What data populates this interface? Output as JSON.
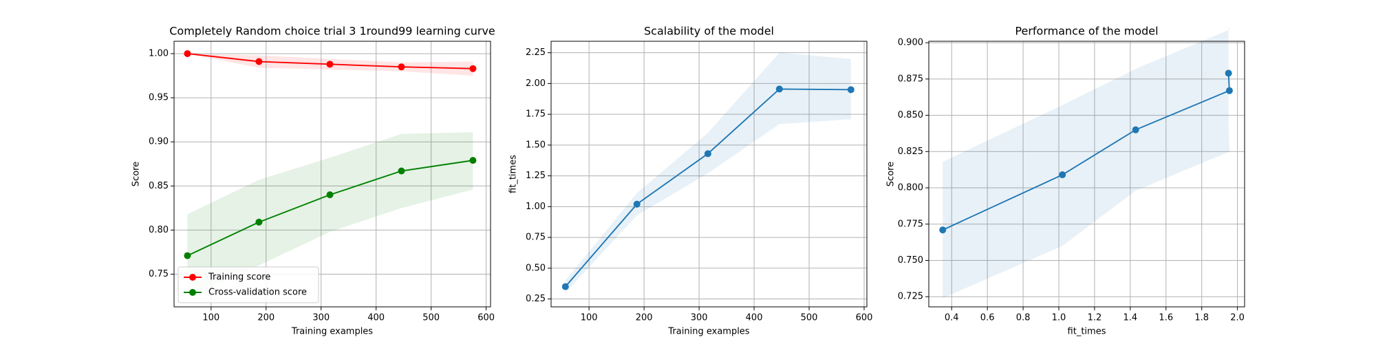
{
  "chart_data": [
    {
      "type": "line",
      "title": "Completely Random choice trial 3 1round99 learning curve",
      "xlabel": "Training examples",
      "ylabel": "Score",
      "x": [
        57,
        187,
        316,
        446,
        576
      ],
      "series": [
        {
          "name": "Training score",
          "color": "#ff0000",
          "values": [
            1.0,
            0.991,
            0.988,
            0.985,
            0.983
          ],
          "band_low": [
            1.0,
            0.984,
            0.982,
            0.98,
            0.975
          ],
          "band_high": [
            1.0,
            0.998,
            0.994,
            0.99,
            0.991
          ]
        },
        {
          "name": "Cross-validation score",
          "color": "#008000",
          "values": [
            0.771,
            0.809,
            0.84,
            0.867,
            0.879
          ],
          "band_low": [
            0.724,
            0.76,
            0.798,
            0.825,
            0.846
          ],
          "band_high": [
            0.818,
            0.857,
            0.882,
            0.909,
            0.911
          ]
        }
      ],
      "xlim": [
        32.7,
        608
      ],
      "ylim": [
        0.713,
        1.014
      ],
      "xticks": [
        100,
        200,
        300,
        400,
        500,
        600
      ],
      "yticks": [
        0.75,
        {
          "value": 0.8,
          "label": "0.80"
        },
        0.85,
        {
          "value": 0.9,
          "label": "0.90"
        },
        0.95,
        {
          "value": 1.0,
          "label": "1.00"
        }
      ],
      "grid": true,
      "legend": "lower left"
    },
    {
      "type": "line",
      "title": "Scalability of the model",
      "xlabel": "Training examples",
      "ylabel": "fit_times",
      "x": [
        57,
        187,
        316,
        446,
        576
      ],
      "series": [
        {
          "color": "#1f77b4",
          "values": [
            0.35,
            1.02,
            1.43,
            1.955,
            1.95
          ],
          "band_low": [
            0.3,
            0.93,
            1.27,
            1.67,
            1.71
          ],
          "band_high": [
            0.4,
            1.11,
            1.6,
            2.25,
            2.2
          ]
        }
      ],
      "xlim": [
        31,
        605
      ],
      "ylim": [
        0.186,
        2.343
      ],
      "xticks": [
        100,
        200,
        300,
        400,
        500,
        600
      ],
      "yticks": [
        0.25,
        {
          "value": 0.5,
          "label": "0.50"
        },
        0.75,
        {
          "value": 1.0,
          "label": "1.00"
        },
        1.25,
        {
          "value": 1.5,
          "label": "1.50"
        },
        1.75,
        {
          "value": 2.0,
          "label": "2.00"
        },
        2.25
      ],
      "grid": true
    },
    {
      "type": "line",
      "title": "Performance of the model",
      "xlabel": "fit_times",
      "ylabel": "Score",
      "x": [
        0.35,
        1.02,
        1.43,
        1.955,
        1.95
      ],
      "series": [
        {
          "color": "#1f77b4",
          "values": [
            0.771,
            0.809,
            0.84,
            0.867,
            0.879
          ],
          "band_low": [
            0.724,
            0.76,
            0.798,
            0.825,
            0.846
          ],
          "band_high": [
            0.818,
            0.857,
            0.882,
            0.909,
            0.911
          ]
        }
      ],
      "xlim": [
        0.272,
        2.04
      ],
      "ylim": [
        0.718,
        0.901
      ],
      "xticks": [
        0.4,
        0.6,
        0.8,
        {
          "value": 1.0,
          "label": "1.0"
        },
        1.2,
        1.4,
        1.6,
        1.8,
        {
          "value": 2.0,
          "label": "2.0"
        }
      ],
      "yticks": [
        {
          "value": 0.725,
          "label": "0.725"
        },
        {
          "value": 0.75,
          "label": "0.750"
        },
        0.775,
        {
          "value": 0.8,
          "label": "0.800"
        },
        0.825,
        {
          "value": 0.85,
          "label": "0.850"
        },
        0.875,
        {
          "value": 0.9,
          "label": "0.900"
        }
      ],
      "grid": true
    }
  ]
}
